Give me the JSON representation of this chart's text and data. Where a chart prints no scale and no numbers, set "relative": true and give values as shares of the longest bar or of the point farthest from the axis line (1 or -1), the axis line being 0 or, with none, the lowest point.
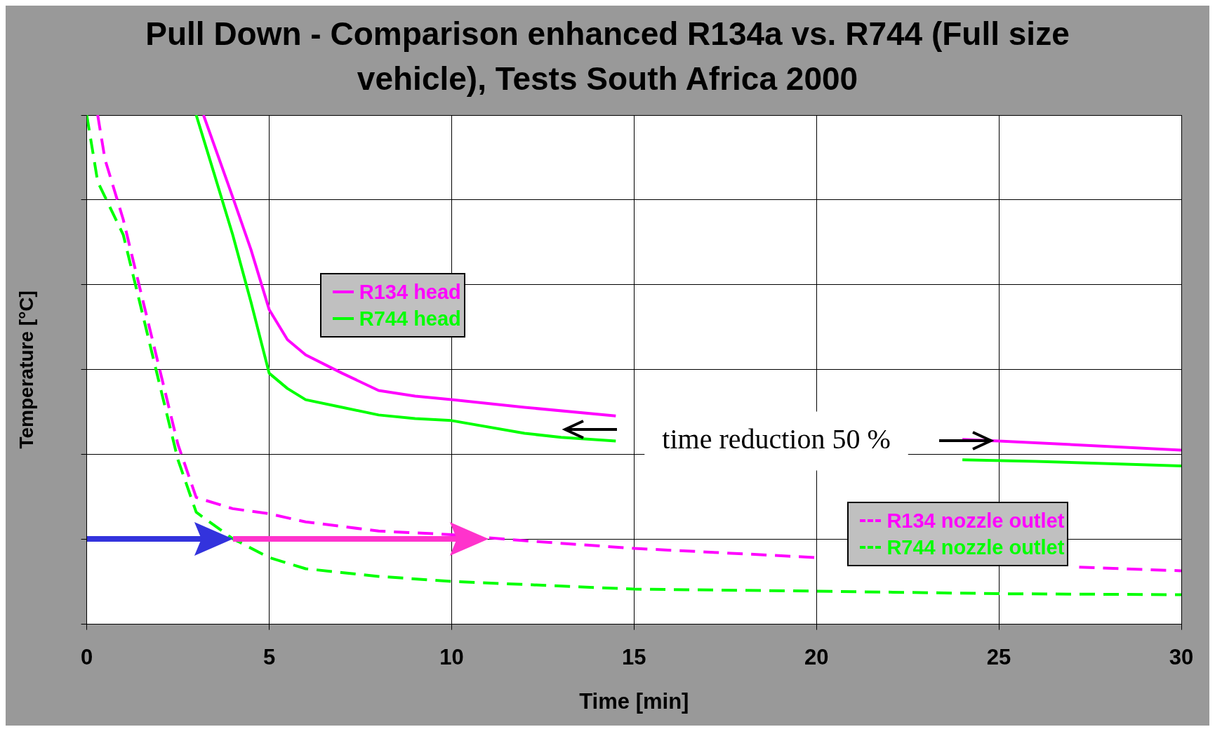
{
  "chart_data": {
    "type": "line",
    "title": "Pull Down - Comparison enhanced R134a vs. R744 (Full size vehicle), Tests South Africa 2000",
    "xlabel": "Time [min]",
    "ylabel": "Temperature [°C]",
    "relative": true,
    "xlim": [
      0,
      30
    ],
    "xticks": [
      0,
      5,
      10,
      15,
      20,
      25,
      30
    ],
    "grid": true,
    "legend": "center",
    "marker": "none",
    "annotations": [
      "time reduction 50 %"
    ],
    "series": [
      {
        "name": "R134 head",
        "color": "#ff00ff",
        "line_style": "solid",
        "x": [
          3.2,
          4,
          4.5,
          5,
          5.5,
          6,
          7,
          8,
          9,
          10,
          12,
          14.5,
          19,
          24,
          25,
          30
        ],
        "values": [
          1.0,
          0.839,
          0.736,
          0.618,
          0.559,
          0.529,
          0.493,
          0.459,
          0.448,
          0.441,
          0.426,
          0.409,
          null,
          0.363,
          0.36,
          0.342
        ]
      },
      {
        "name": "R744 head",
        "color": "#00ff00",
        "line_style": "solid",
        "x": [
          3,
          3.5,
          4,
          4.5,
          5,
          5.5,
          6,
          7,
          8,
          9,
          10,
          12,
          13,
          14.5,
          19,
          24,
          26,
          30
        ],
        "values": [
          1.0,
          0.883,
          0.765,
          0.633,
          0.493,
          0.463,
          0.441,
          0.426,
          0.411,
          0.404,
          0.4,
          0.375,
          0.367,
          0.36,
          null,
          0.323,
          0.32,
          0.311
        ]
      },
      {
        "name": "R134 nozzle outlet",
        "color": "#ff00ff",
        "line_style": "dashed",
        "x": [
          0.3,
          0.5,
          1,
          1.5,
          2,
          2.5,
          3,
          4,
          5,
          6,
          8,
          10,
          12,
          15,
          20,
          24,
          27.2,
          30
        ],
        "values": [
          1.0,
          0.913,
          0.795,
          0.647,
          0.5,
          0.353,
          0.249,
          0.227,
          0.217,
          0.201,
          0.183,
          0.176,
          0.164,
          0.149,
          0.131,
          null,
          0.112,
          0.105
        ]
      },
      {
        "name": "R744 nozzle outlet",
        "color": "#00ff00",
        "line_style": "dashed",
        "x": [
          0,
          0.3,
          1,
          1.5,
          2,
          2.5,
          3,
          4,
          5,
          6,
          8,
          10,
          15,
          20,
          25,
          30
        ],
        "values": [
          1.0,
          0.869,
          0.765,
          0.618,
          0.47,
          0.323,
          0.22,
          0.168,
          0.131,
          0.109,
          0.094,
          0.084,
          0.069,
          0.065,
          0.06,
          0.058
        ]
      }
    ]
  }
}
